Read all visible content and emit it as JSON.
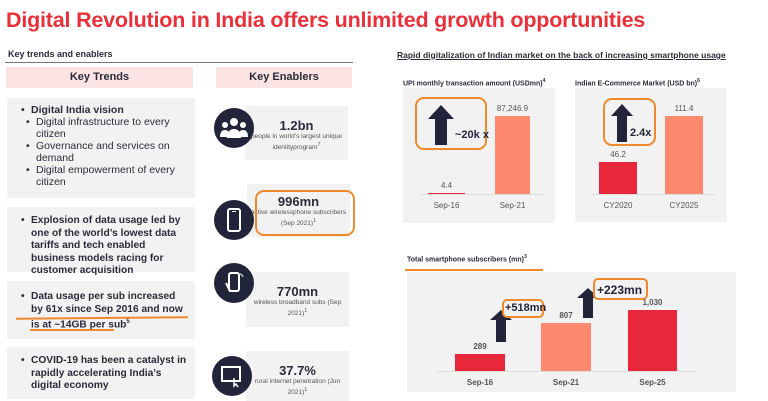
{
  "title": "Digital Revolution in India offers unlimited growth opportunities",
  "left": {
    "section_title": "Key trends and enablers",
    "trends_header": "Key Trends",
    "enablers_header": "Key Enablers",
    "trends": [
      {
        "title": "Digital India vision",
        "subs": [
          "Digital infrastructure to every citizen",
          "Governance and services on demand",
          "Digital empowerment of every citizen"
        ]
      },
      {
        "title": "Explosion of data usage led by one of the world’s lowest data tariffs and tech enabled business models racing for customer acquisition"
      },
      {
        "title_a": "Data usage per sub increased by ",
        "title_b": "61x since Sep 2016 and now is at ~14GB per sub",
        "sup": "5"
      },
      {
        "title": "COVID-19 has been a catalyst in rapidly accelerating India’s digital economy"
      }
    ],
    "enablers": [
      {
        "value": "1.2bn",
        "desc": "people in world’s largest unique identityprogram",
        "sup": "7",
        "icon": "people-group-icon"
      },
      {
        "value": "996mn",
        "desc": "active wirelessphone subscribers (Sep 2021)",
        "sup": "1",
        "icon": "smartphone-icon"
      },
      {
        "value": "770mn",
        "desc": "wireless broadband subs (Sep 2021)",
        "sup": "1",
        "icon": "phone-in-hand-icon"
      },
      {
        "value": "37.7%",
        "desc": "rural internet penetration (Jun 2021)",
        "sup": "1",
        "icon": "tablet-touch-icon"
      }
    ]
  },
  "right": {
    "heading": "Rapid digitalization of Indian market on the back of increasing smartphone usage"
  },
  "colors": {
    "title": "#e8313a",
    "bar_dark_red": "#e8283a",
    "bar_salmon": "#fd8a6e",
    "highlight": "#ef8a2c",
    "arrow": "#22253a"
  },
  "chart_data": [
    {
      "type": "bar",
      "title": "UPI monthly transaction amount (USDmn)",
      "title_sup": "4",
      "categories": [
        "Sep-16",
        "Sep-21"
      ],
      "values": [
        4.4,
        87246.9
      ],
      "value_labels": [
        "4.4",
        "87,246.9"
      ],
      "annotation": "~20k x"
    },
    {
      "type": "bar",
      "title": "Indian E-Commerce Market (USD bn)",
      "title_sup": "6",
      "categories": [
        "CY2020",
        "CY2025"
      ],
      "values": [
        46.2,
        111.4
      ],
      "value_labels": [
        "46.2",
        "111.4"
      ],
      "annotation": "2.4x"
    },
    {
      "type": "bar",
      "title": "Total smartphone subscribers (mn)",
      "title_sup": "3",
      "categories": [
        "Sep-16",
        "Sep-21",
        "Sep-25"
      ],
      "values": [
        289,
        807,
        1030
      ],
      "value_labels": [
        "289",
        "807",
        "1,030"
      ],
      "annotations": [
        "+518mn",
        "+223mn"
      ]
    }
  ]
}
